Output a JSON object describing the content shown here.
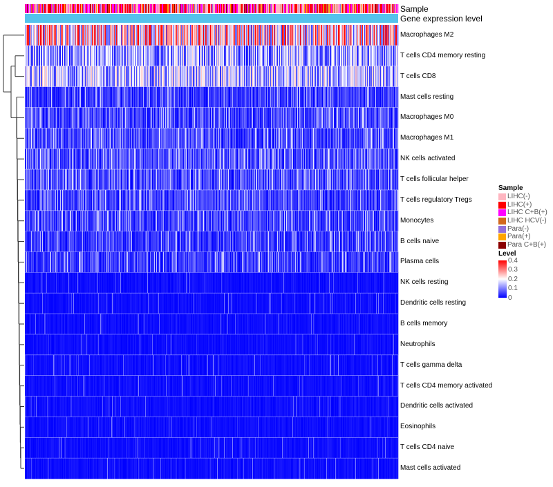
{
  "chart_data": {
    "type": "heatmap",
    "annotation_rows": [
      "Sample",
      "Gene expression level"
    ],
    "rows": [
      {
        "name": "Macrophages M2",
        "level": 0.22
      },
      {
        "name": "T cells CD4 memory resting",
        "level": 0.12
      },
      {
        "name": "T cells CD8",
        "level": 0.14
      },
      {
        "name": "Mast cells resting",
        "level": 0.05
      },
      {
        "name": "Macrophages M0",
        "level": 0.06
      },
      {
        "name": "Macrophages M1",
        "level": 0.07
      },
      {
        "name": "NK cells activated",
        "level": 0.07
      },
      {
        "name": "T cells follicular helper",
        "level": 0.07
      },
      {
        "name": "T cells regulatory  Tregs",
        "level": 0.06
      },
      {
        "name": "Monocytes",
        "level": 0.06
      },
      {
        "name": "B cells naive",
        "level": 0.05
      },
      {
        "name": "Plasma cells",
        "level": 0.05
      },
      {
        "name": "NK cells resting",
        "level": 0.03
      },
      {
        "name": "Dendritic cells resting",
        "level": 0.03
      },
      {
        "name": "B cells memory",
        "level": 0.03
      },
      {
        "name": "Neutrophils",
        "level": 0.02
      },
      {
        "name": "T cells gamma delta",
        "level": 0.01
      },
      {
        "name": "T cells CD4 memory activated",
        "level": 0.01
      },
      {
        "name": "Dendritic cells activated",
        "level": 0.01
      },
      {
        "name": "Eosinophils",
        "level": 0.01
      },
      {
        "name": "T cells CD4 naive",
        "level": 0.01
      },
      {
        "name": "Mast cells activated",
        "level": 0.01
      }
    ],
    "sample_legend": {
      "title": "Sample",
      "items": [
        {
          "label": "LIHC(-)",
          "color": "#ffb6c1"
        },
        {
          "label": "LIHC(+)",
          "color": "#ff0000"
        },
        {
          "label": "LIHC C+B(+)",
          "color": "#ff00ff"
        },
        {
          "label": "LIHC HCV(-)",
          "color": "#d2691e"
        },
        {
          "label": "Para(-)",
          "color": "#9370db"
        },
        {
          "label": "Para(+)",
          "color": "#ffa500"
        },
        {
          "label": "Para C+B(+)",
          "color": "#8b0000"
        }
      ]
    },
    "level_legend": {
      "title": "Level",
      "ticks": [
        "0.4",
        "0.3",
        "0.2",
        "0.1",
        "0"
      ],
      "range": [
        0,
        0.4
      ]
    },
    "gene_expression_color": "#55c2ec",
    "colors": {
      "low": "#0000ff",
      "mid": "#ffffff",
      "high": "#ff0000"
    }
  }
}
